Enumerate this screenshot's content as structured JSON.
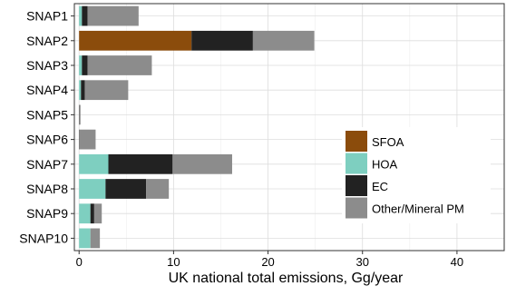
{
  "chart_data": {
    "type": "bar",
    "orientation": "horizontal",
    "stacked": true,
    "title": "",
    "xlabel": "UK national total emissions, Gg/year",
    "ylabel": "",
    "xlim": [
      -0.5,
      45
    ],
    "xticks": [
      0,
      10,
      20,
      30,
      40
    ],
    "xtick_labels": [
      "0",
      "10",
      "20",
      "30",
      "40"
    ],
    "grid": true,
    "legend_position": "right",
    "categories": [
      "SNAP1",
      "SNAP2",
      "SNAP3",
      "SNAP4",
      "SNAP5",
      "SNAP6",
      "SNAP7",
      "SNAP8",
      "SNAP9",
      "SNAP10"
    ],
    "series": [
      {
        "name": "SFOA",
        "color": "#8B4C0C",
        "values": [
          0,
          11.9,
          0,
          0,
          0,
          0,
          0,
          0,
          0,
          0
        ]
      },
      {
        "name": "HOA",
        "color": "#7ECFC0",
        "values": [
          0.3,
          0,
          0.3,
          0.2,
          0,
          0,
          3.1,
          2.8,
          1.2,
          1.2
        ]
      },
      {
        "name": "EC",
        "color": "#222222",
        "values": [
          0.6,
          6.5,
          0.6,
          0.4,
          0.05,
          0.05,
          6.8,
          4.3,
          0.4,
          0
        ]
      },
      {
        "name": "Other/Mineral PM",
        "color": "#8C8C8C",
        "values": [
          5.4,
          6.5,
          6.8,
          4.6,
          0.1,
          1.7,
          6.3,
          2.4,
          0.8,
          1.0
        ]
      }
    ]
  }
}
